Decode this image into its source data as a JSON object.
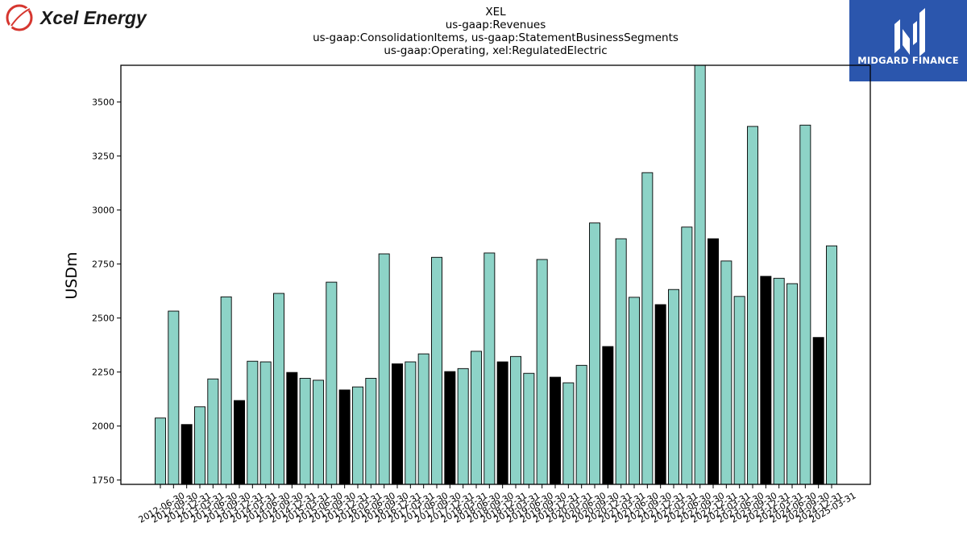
{
  "brand": {
    "name": "Xcel Energy"
  },
  "partner": {
    "name": "MIDGARD FINANCE"
  },
  "colors": {
    "bar_default": "#8dd3c7",
    "bar_highlight": "#000000",
    "bar_edge": "#000000",
    "axis": "#000000"
  },
  "chart_data": {
    "type": "bar",
    "title_lines": [
      "XEL",
      "us-gaap:Revenues",
      "us-gaap:ConsolidationItems, us-gaap:StatementBusinessSegments",
      "us-gaap:Operating, xel:RegulatedElectric"
    ],
    "xlabel": "",
    "ylabel": "USDm",
    "ylim": [
      1730,
      3670
    ],
    "yticks": [
      1750,
      2000,
      2250,
      2500,
      2750,
      3000,
      3250,
      3500
    ],
    "grid": false,
    "categories": [
      "2012-06-30",
      "2012-09-30",
      "2012-12-31",
      "2013-03-31",
      "2013-06-30",
      "2013-09-30",
      "2013-12-31",
      "2014-03-31",
      "2014-06-30",
      "2014-09-30",
      "2014-12-31",
      "2015-03-31",
      "2015-06-30",
      "2015-09-30",
      "2015-12-31",
      "2016-03-31",
      "2016-06-30",
      "2016-09-30",
      "2016-12-31",
      "2017-03-31",
      "2017-06-30",
      "2017-09-30",
      "2017-12-31",
      "2018-03-31",
      "2018-06-30",
      "2018-09-30",
      "2018-12-31",
      "2019-03-31",
      "2019-06-30",
      "2019-09-30",
      "2019-12-31",
      "2020-03-31",
      "2020-06-30",
      "2020-09-30",
      "2020-12-31",
      "2021-03-31",
      "2021-06-30",
      "2021-09-30",
      "2021-12-31",
      "2022-03-31",
      "2022-06-30",
      "2022-09-30",
      "2022-12-31",
      "2023-03-31",
      "2023-06-30",
      "2023-09-30",
      "2023-12-31",
      "2024-03-31",
      "2024-06-30",
      "2024-09-30",
      "2024-12-31",
      "2025-03-31"
    ],
    "tick_labels": [
      "2012-06-30",
      "2012-09-30",
      "2012-12-31",
      "2013-03-31",
      "2013-06-30",
      "2013-09-30",
      "2013-12-31",
      "2014-03-31",
      "2014-06-30",
      "2014-09-30",
      "2014-12-31",
      "2015-03-31",
      "2015-06-30",
      "2015-09-30",
      "2015-12-31",
      "2016-03-31",
      "2016-06-30",
      "2016-09-30",
      "2016-12-31",
      "2017-03-31",
      "2017-06-30",
      "2017-09-30",
      "2017-12-31",
      "2018-03-31",
      "2018-06-30",
      "2018-09-30",
      "2018-12-31",
      "2019-03-31",
      "2019-06-30",
      "2019-09-30",
      "2019-12-31",
      "2020-03-31",
      "2020-06-30",
      "2020-09-30",
      "2020-12-31",
      "2021-03-31",
      "2021-06-30",
      "2021-09-30",
      "2021-12-31",
      "2022-03-31",
      "2022-06-30",
      "2022-09-30",
      "2022-12-31",
      "2023-03-31",
      "2023-06-30",
      "2023-09-30",
      "2023-12-31",
      "2024-03-31",
      "2024-06-30",
      "2024-09-30",
      "2024-12-31",
      "2025-03-31"
    ],
    "values": [
      2037,
      2532,
      2007,
      2089,
      2218,
      2598,
      2118,
      2300,
      2297,
      2614,
      2248,
      2221,
      2212,
      2666,
      2167,
      2181,
      2221,
      2797,
      2288,
      2297,
      2334,
      2781,
      2252,
      2266,
      2346,
      2801,
      2297,
      2322,
      2244,
      2771,
      2226,
      2200,
      2281,
      2940,
      2368,
      2867,
      2596,
      3173,
      2562,
      2632,
      2921,
      3670,
      2867,
      2764,
      2600,
      3387,
      2693,
      2684,
      2659,
      3393,
      2410,
      2834
    ],
    "highlight_indices": [
      2,
      6,
      10,
      14,
      18,
      22,
      26,
      30,
      34,
      38,
      42,
      46,
      50
    ]
  }
}
